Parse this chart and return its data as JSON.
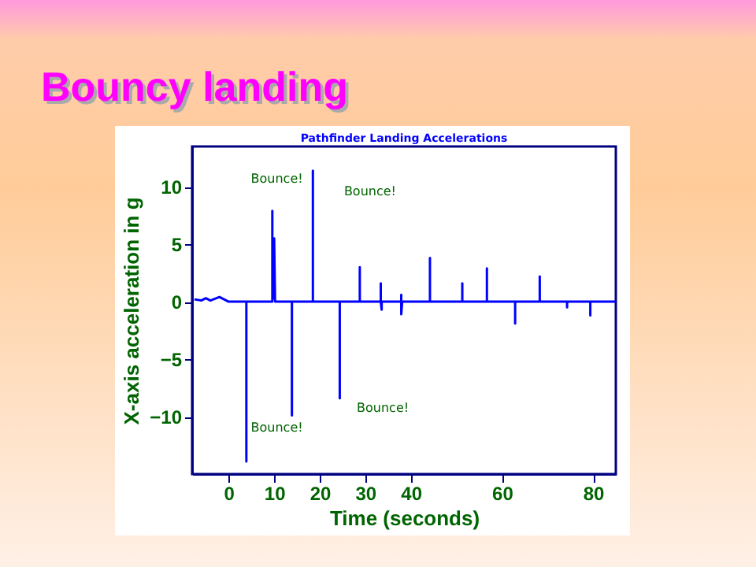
{
  "chart_data": {
    "type": "line",
    "title": "Bouncy landing",
    "subtitle": "Pathfinder Landing Accelerations",
    "xlabel": "Time (seconds)",
    "ylabel": "X-axis acceleration in g",
    "x": [
      -7.5,
      -6,
      -5,
      -4,
      -2,
      -1,
      0,
      3.9,
      3.9,
      3.9,
      9.6,
      9.6,
      9.6,
      10.0,
      10.0,
      10.2,
      13.9,
      13.9,
      13.9,
      18.5,
      18.5,
      18.5,
      24.4,
      24.4,
      24.4,
      28.8,
      28.8,
      28.8,
      33.4,
      33.4,
      33.4,
      33.6,
      33.6,
      37.9,
      37.9,
      37.9,
      38.1,
      44.2,
      44.2,
      44.2,
      51.3,
      51.3,
      51.3,
      56.7,
      56.7,
      56.7,
      62.9,
      62.9,
      62.9,
      68.3,
      68.3,
      68.3,
      74.3,
      74.3,
      74.3,
      79.4,
      79.4,
      79.4,
      85
    ],
    "series": [
      {
        "color": "#0000ff",
        "values": [
          0.2,
          0.1,
          0.3,
          0.1,
          0.4,
          0.2,
          0,
          0,
          -13.9,
          0,
          0,
          7.9,
          0.3,
          0.3,
          5.5,
          0,
          0,
          -9.9,
          0,
          0,
          11.4,
          0,
          0,
          -8.4,
          0,
          0,
          3,
          0,
          0,
          1.6,
          0,
          -0.7,
          0,
          0,
          0.6,
          -1.1,
          0,
          0,
          3.8,
          0,
          0,
          1.6,
          0,
          0,
          2.9,
          0,
          0,
          -1.9,
          0,
          0,
          2.2,
          0,
          0,
          -0.5,
          0,
          0,
          -1.2,
          0,
          0
        ]
      }
    ],
    "xlim": [
      -8,
      85
    ],
    "xticks": [
      0,
      10,
      20,
      30,
      40,
      60,
      80
    ],
    "ylim": [
      -15,
      13.5
    ],
    "yticks": [
      -10,
      -5,
      0,
      5,
      10
    ],
    "grid": false,
    "annotations": [
      "Bounce!",
      "Bounce!",
      "Bounce!",
      "Bounce!"
    ]
  }
}
